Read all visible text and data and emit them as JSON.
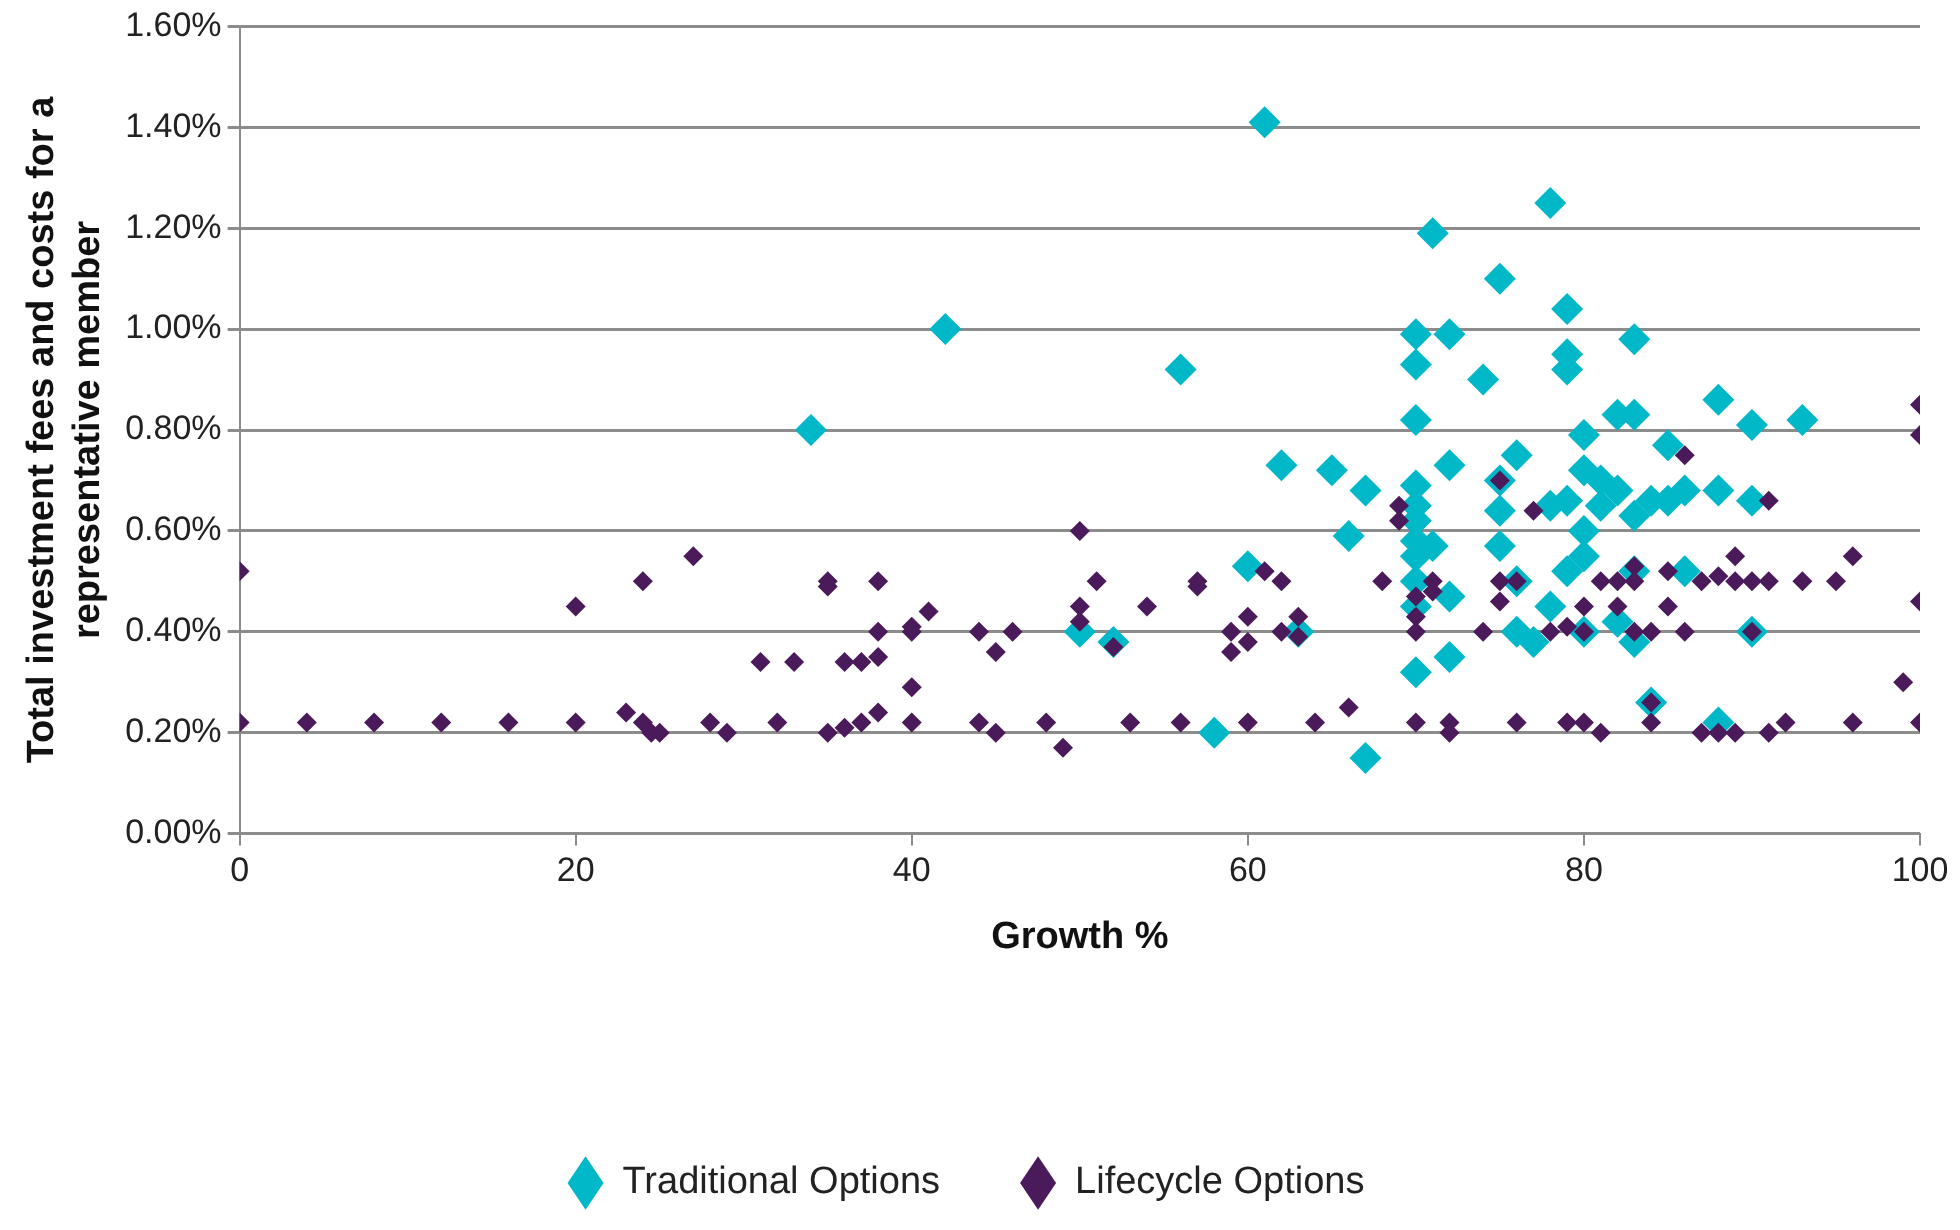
{
  "chart_data": {
    "type": "scatter",
    "xlabel": "Growth %",
    "ylabel": "Total investment fees and costs for a representative member",
    "xlim": [
      0,
      100
    ],
    "xticks": [
      0,
      20,
      40,
      60,
      80,
      100
    ],
    "ylim": [
      0,
      1.6
    ],
    "yticks": [
      {
        "value": 0,
        "label": "0.00%"
      },
      {
        "value": 0.2,
        "label": "0.20%"
      },
      {
        "value": 0.4,
        "label": "0.40%"
      },
      {
        "value": 0.6,
        "label": "0.60%"
      },
      {
        "value": 0.8,
        "label": "0.80%"
      },
      {
        "value": 1,
        "label": "1.00%"
      },
      {
        "value": 1.2,
        "label": "1.20%"
      },
      {
        "value": 1.4,
        "label": "1.40%"
      },
      {
        "value": 1.6,
        "label": "1.60%"
      }
    ],
    "grid": "y",
    "legend": "bottom",
    "marker": "diamond",
    "series": [
      {
        "name": "Traditional Options",
        "color": "#00b8c8",
        "x": [
          34,
          42,
          56,
          61,
          60,
          50,
          52,
          58,
          62,
          63,
          65,
          66,
          67,
          67,
          70,
          70,
          70,
          70,
          70,
          70,
          70,
          70,
          70,
          70,
          70,
          71,
          72,
          72,
          71,
          72,
          72,
          74,
          75,
          75,
          75,
          75,
          76,
          76,
          76,
          77,
          78,
          78,
          79,
          79,
          79,
          79,
          79,
          80,
          80,
          80,
          80,
          81,
          81,
          82,
          82,
          82,
          83,
          83,
          83,
          83,
          83,
          84,
          84,
          85,
          85,
          86,
          86,
          88,
          88,
          88,
          90,
          90,
          90,
          93,
          78,
          80
        ],
        "values": [
          0.8,
          1.0,
          0.92,
          1.41,
          0.53,
          0.4,
          0.38,
          0.2,
          0.73,
          0.4,
          0.72,
          0.59,
          0.68,
          0.15,
          0.99,
          0.93,
          0.82,
          0.69,
          0.65,
          0.62,
          0.58,
          0.55,
          0.5,
          0.45,
          0.32,
          1.19,
          0.99,
          0.73,
          0.57,
          0.47,
          0.35,
          0.9,
          1.1,
          0.7,
          0.64,
          0.57,
          0.75,
          0.5,
          0.4,
          0.38,
          1.25,
          0.65,
          1.04,
          0.95,
          0.92,
          0.66,
          0.52,
          0.79,
          0.72,
          0.6,
          0.55,
          0.7,
          0.65,
          0.83,
          0.68,
          0.42,
          0.98,
          0.83,
          0.63,
          0.52,
          0.38,
          0.66,
          0.26,
          0.77,
          0.66,
          0.68,
          0.52,
          0.86,
          0.68,
          0.22,
          0.81,
          0.66,
          0.4,
          0.82,
          0.45,
          0.4
        ]
      },
      {
        "name": "Lifecycle Options",
        "color": "#4b1a5b",
        "x": [
          0,
          0,
          4,
          8,
          12,
          16,
          20,
          20,
          24,
          27,
          31,
          33,
          23,
          24,
          24.5,
          25,
          28,
          29,
          32,
          35,
          35,
          36,
          37,
          38,
          38,
          38,
          35,
          36,
          37,
          38,
          40,
          40,
          41,
          40,
          40,
          44,
          45,
          46,
          44,
          45,
          48,
          49,
          50,
          50,
          51,
          50,
          52,
          54,
          53,
          56,
          57,
          57,
          59,
          59,
          60,
          60,
          60,
          61,
          62,
          62,
          63,
          63,
          64,
          66,
          68,
          69,
          69,
          70,
          70,
          70,
          71,
          71,
          70,
          72,
          72,
          74,
          75,
          75,
          75,
          76,
          76,
          77,
          78,
          79,
          79,
          80,
          80,
          80,
          81,
          81,
          82,
          82,
          83,
          83,
          83,
          84,
          84,
          84,
          85,
          85,
          86,
          86,
          87,
          87,
          88,
          88,
          89,
          89,
          89,
          90,
          90,
          91,
          91,
          91,
          92,
          93,
          95,
          96,
          96,
          99,
          100,
          100,
          100,
          100
        ],
        "values": [
          0.52,
          0.22,
          0.22,
          0.22,
          0.22,
          0.22,
          0.22,
          0.45,
          0.5,
          0.55,
          0.34,
          0.34,
          0.24,
          0.22,
          0.2,
          0.2,
          0.22,
          0.2,
          0.22,
          0.5,
          0.49,
          0.34,
          0.34,
          0.35,
          0.4,
          0.5,
          0.2,
          0.21,
          0.22,
          0.24,
          0.4,
          0.41,
          0.44,
          0.29,
          0.22,
          0.4,
          0.36,
          0.4,
          0.22,
          0.2,
          0.22,
          0.17,
          0.6,
          0.45,
          0.5,
          0.42,
          0.37,
          0.45,
          0.22,
          0.22,
          0.5,
          0.49,
          0.4,
          0.36,
          0.38,
          0.43,
          0.22,
          0.52,
          0.5,
          0.4,
          0.43,
          0.39,
          0.22,
          0.25,
          0.5,
          0.65,
          0.62,
          0.47,
          0.43,
          0.4,
          0.5,
          0.48,
          0.22,
          0.22,
          0.2,
          0.4,
          0.7,
          0.46,
          0.5,
          0.5,
          0.22,
          0.64,
          0.4,
          0.41,
          0.22,
          0.45,
          0.4,
          0.22,
          0.5,
          0.2,
          0.5,
          0.45,
          0.53,
          0.5,
          0.4,
          0.4,
          0.26,
          0.22,
          0.52,
          0.45,
          0.75,
          0.4,
          0.5,
          0.2,
          0.51,
          0.2,
          0.55,
          0.5,
          0.2,
          0.5,
          0.4,
          0.66,
          0.5,
          0.2,
          0.22,
          0.5,
          0.5,
          0.55,
          0.22,
          0.3,
          0.85,
          0.79,
          0.46,
          0.22
        ]
      }
    ]
  }
}
